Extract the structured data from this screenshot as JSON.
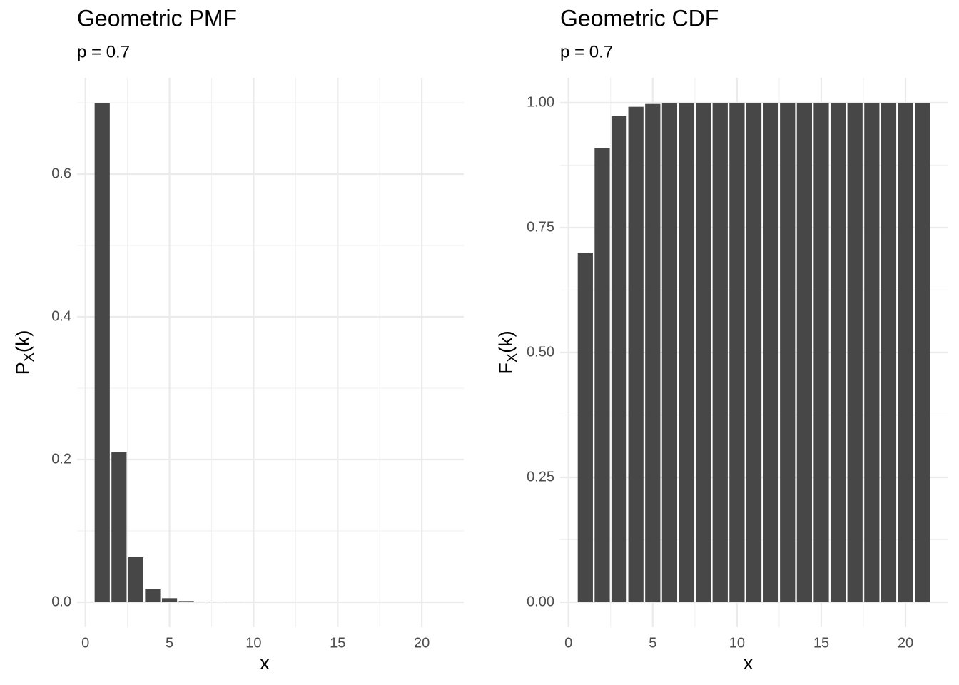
{
  "chart_data": [
    {
      "type": "bar",
      "title": "Geometric PMF",
      "subtitle": "p = 0.7",
      "x_label": "x",
      "y_label": {
        "main": "P",
        "sub": "X",
        "rest": "(k)"
      },
      "x": [
        1,
        2,
        3,
        4,
        5,
        6,
        7,
        8,
        9,
        10,
        11,
        12,
        13,
        14,
        15,
        16,
        17,
        18,
        19,
        20,
        21
      ],
      "values": [
        0.7,
        0.21,
        0.063,
        0.0189,
        0.00567,
        0.001701,
        0.0005103,
        0.00015309,
        4.59e-05,
        1.38e-05,
        4.13e-06,
        1.24e-06,
        3.72e-07,
        1.12e-07,
        3.35e-08,
        1e-08,
        3e-09,
        9e-10,
        2.7e-10,
        8e-11,
        2.4e-11
      ],
      "color": "#474747",
      "xlim": [
        -0.495,
        22.495
      ],
      "ylim": [
        -0.035,
        0.735
      ],
      "xticks": [
        0,
        5,
        10,
        15,
        20
      ],
      "yticks": [
        {
          "value": 0,
          "label": "0.0"
        },
        0.2,
        0.4,
        0.6
      ],
      "grid": true
    },
    {
      "type": "bar",
      "title": "Geometric CDF",
      "subtitle": "p = 0.7",
      "x_label": "x",
      "y_label": {
        "main": "F",
        "sub": "X",
        "rest": "(k)"
      },
      "x": [
        1,
        2,
        3,
        4,
        5,
        6,
        7,
        8,
        9,
        10,
        11,
        12,
        13,
        14,
        15,
        16,
        17,
        18,
        19,
        20,
        21
      ],
      "values": [
        0.7,
        0.91,
        0.973,
        0.9919,
        0.99757,
        0.999271,
        0.999781,
        0.999934,
        0.99998,
        0.999994,
        0.999998,
        1,
        1,
        1,
        1,
        1,
        1,
        1,
        1,
        1,
        1
      ],
      "color": "#474747",
      "xlim": [
        -0.495,
        22.495
      ],
      "ylim": [
        -0.05,
        1.05
      ],
      "xticks": [
        0,
        5,
        10,
        15,
        20
      ],
      "yticks": [
        {
          "value": 0,
          "label": "0.00"
        },
        {
          "value": 0.25,
          "label": "0.25"
        },
        {
          "value": 0.5,
          "label": "0.50"
        },
        {
          "value": 0.75,
          "label": "0.75"
        },
        {
          "value": 1,
          "label": "1.00"
        }
      ],
      "grid": true
    }
  ]
}
